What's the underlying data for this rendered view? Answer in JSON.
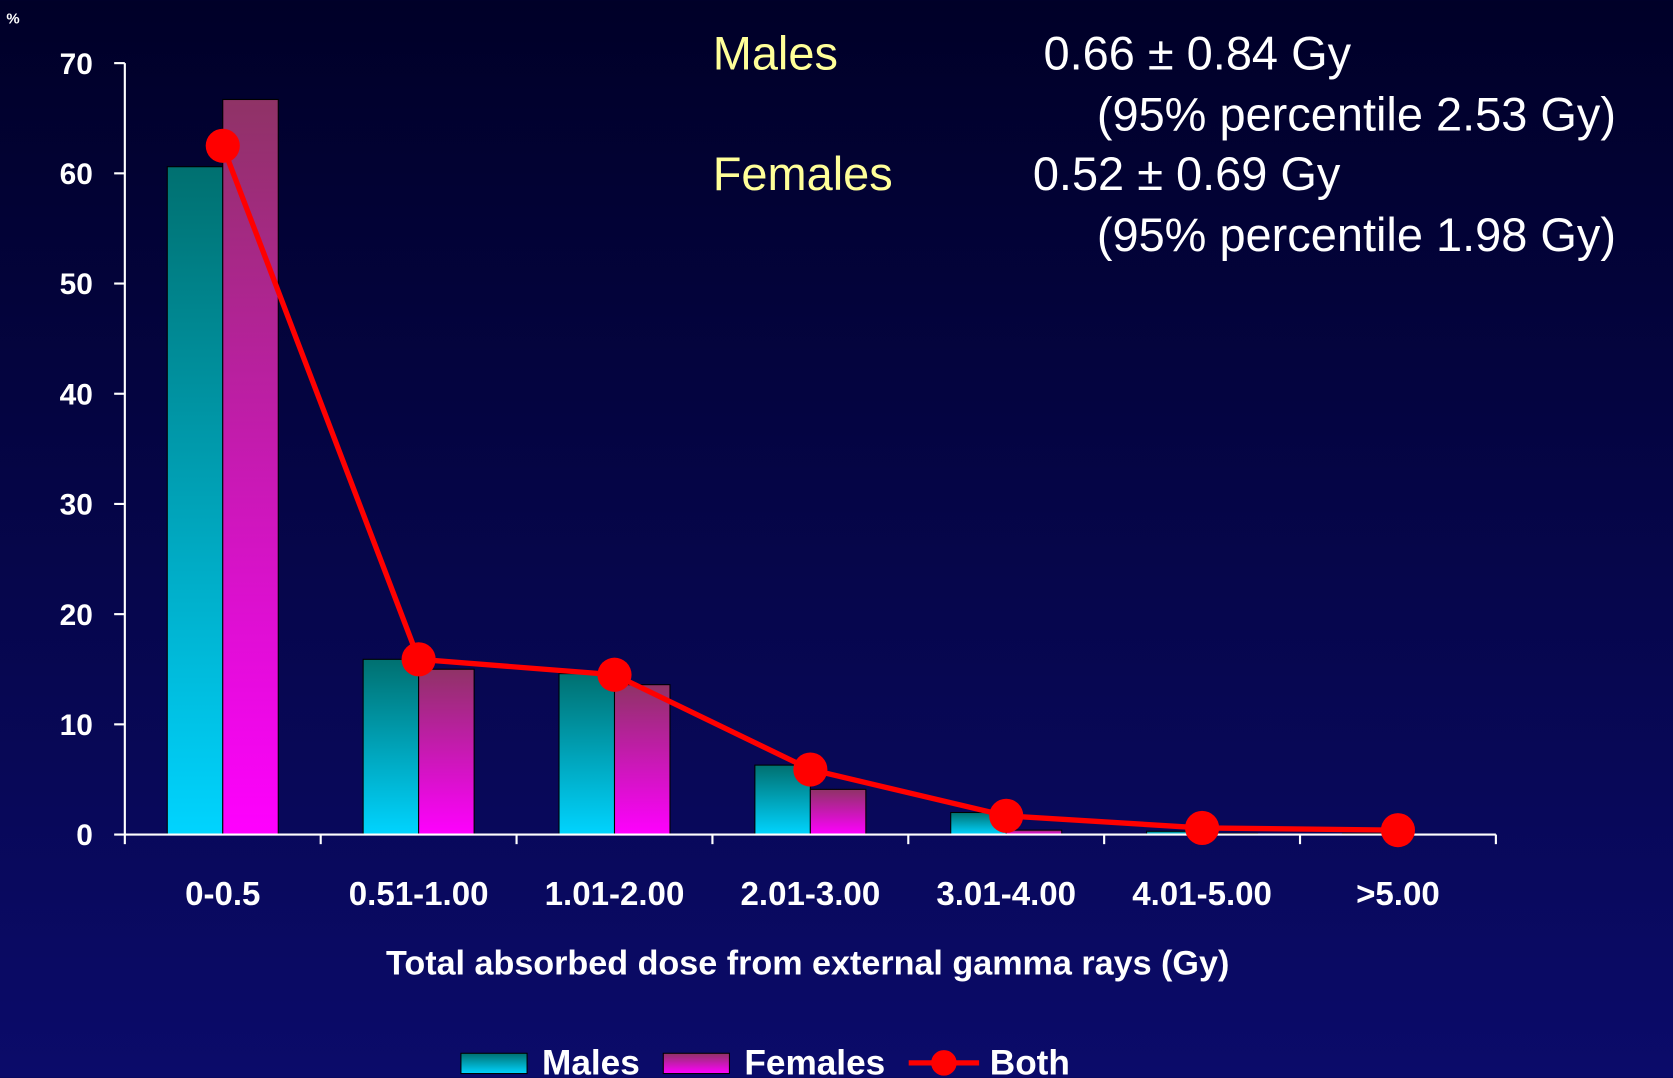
{
  "chart_data": {
    "type": "bar",
    "y_label": "%",
    "x_label": "Total absorbed dose from external gamma rays (Gy)",
    "categories": [
      "0-0.5",
      "0.51-1.00",
      "1.01-2.00",
      "2.01-3.00",
      "3.01-4.00",
      "4.01-5.00",
      ">5.00"
    ],
    "series": [
      {
        "name": "Males",
        "type": "bar",
        "gradient": [
          "#007070",
          "#00d4ff"
        ],
        "values": [
          60.6,
          15.9,
          14.6,
          6.3,
          2.0,
          0.3,
          0.1
        ]
      },
      {
        "name": "Females",
        "type": "bar",
        "gradient": [
          "#8f3366",
          "#ff00ff"
        ],
        "values": [
          66.7,
          15.0,
          13.6,
          4.1,
          0.4,
          0.1,
          0
        ]
      },
      {
        "name": "Both",
        "type": "line",
        "color": "#ff0000",
        "values": [
          62.5,
          15.9,
          14.5,
          5.9,
          1.7,
          0.6,
          0.4
        ]
      }
    ],
    "ylim": [
      0,
      70
    ],
    "yticks": [
      0,
      10,
      20,
      30,
      40,
      50,
      60,
      70
    ],
    "annotations": [
      {
        "label": "Males",
        "text": "0.66 ± 0.84 Gy",
        "note": "(95% percentile 2.53 Gy)"
      },
      {
        "label": "Females",
        "text": "0.52 ± 0.69 Gy",
        "note": "(95% percentile 1.98 Gy)"
      }
    ]
  }
}
